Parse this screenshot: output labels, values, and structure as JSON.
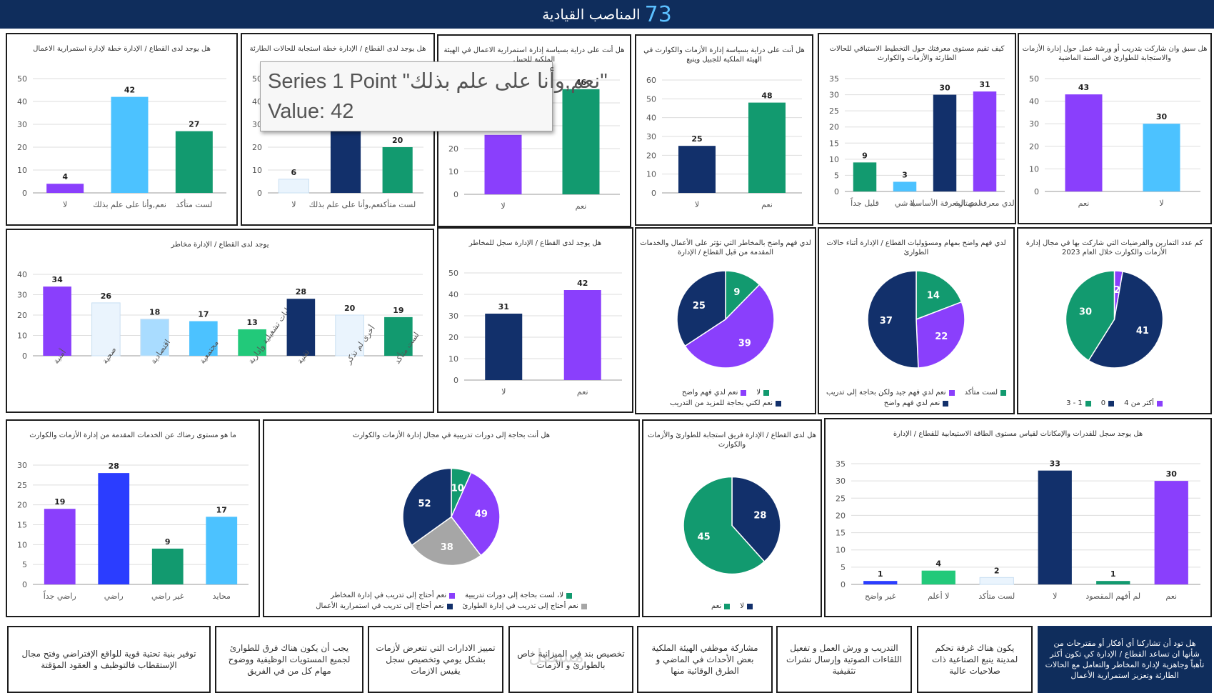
{
  "header": {
    "title": "المناصب القيادية",
    "number": "73"
  },
  "tooltip": {
    "line1": "Series 1 Point \"نعم,وأنا على علم بذلك\"",
    "line2": "Value: 42"
  },
  "watermark": "مستقل",
  "chart_data": [
    {
      "id": "c1",
      "type": "bar",
      "title": "هل يوجد لدى القطاع / الإدارة خطة لإدارة استمرارية الاعمال",
      "categories": [
        "لا",
        "نعم,وأنا على علم بذلك",
        "لست متأكد"
      ],
      "values": [
        4,
        42,
        27
      ],
      "colors": [
        "#8a3ffc",
        "#4cc2ff",
        "#129a6f"
      ],
      "ylim": [
        0,
        50
      ],
      "ticks": [
        0,
        10,
        20,
        30,
        40,
        50
      ]
    },
    {
      "id": "c2",
      "type": "bar",
      "title": "هل يوجد لدى القطاع / الإدارة خطة استجابة للحالات الطارئة",
      "categories": [
        "لا",
        "نعم,وأنا على علم بذلك",
        "لست متأكد"
      ],
      "values": [
        6,
        42,
        20
      ],
      "colors": [
        "#eaf4fd",
        "#12306b",
        "#129a6f"
      ],
      "ylim": [
        0,
        50
      ],
      "ticks": [
        0,
        10,
        20,
        30,
        40,
        50
      ]
    },
    {
      "id": "c3",
      "type": "bar",
      "title": "هل أنت على دراية بسياسة إدارة استمرارية الاعمال في الهيئة الملكية للجبيل",
      "categories": [
        "لا",
        "نعم"
      ],
      "values": [
        26,
        46
      ],
      "colors": [
        "#8a3ffc",
        "#129a6f"
      ],
      "ylim": [
        0,
        50
      ],
      "ticks": [
        0,
        10,
        20,
        30,
        40,
        50
      ]
    },
    {
      "id": "c4",
      "type": "bar",
      "title": "هل أنت على دراية بسياسة إدارة الأزمات والكوارث في الهيئة الملكية للجبيل وينبع",
      "categories": [
        "لا",
        "نعم"
      ],
      "values": [
        25,
        48
      ],
      "colors": [
        "#12306b",
        "#129a6f"
      ],
      "ylim": [
        0,
        60
      ],
      "ticks": [
        0,
        10,
        20,
        30,
        40,
        50,
        60
      ]
    },
    {
      "id": "c5",
      "type": "bar",
      "title": "كيف تقيم مستوى معرفتك حول التخطيط الاستباقي للحالات الطارئة والأزمات والكوارث",
      "categories": [
        "قليل جداً",
        "لا شي",
        "لدي المعرفة الأساسية",
        "لدي معرفة ممتازة"
      ],
      "values": [
        9,
        3,
        30,
        31
      ],
      "colors": [
        "#129a6f",
        "#4cc2ff",
        "#12306b",
        "#8a3ffc"
      ],
      "ylim": [
        0,
        35
      ],
      "ticks": [
        0,
        5,
        10,
        15,
        20,
        25,
        30,
        35
      ]
    },
    {
      "id": "c6",
      "type": "bar",
      "title": "هل سبق وان شاركت بتدريب أو ورشة عمل حول إدارة الأزمات والاستجابة للطوارئ في السنة الماضية",
      "categories": [
        "نعم",
        "لا"
      ],
      "values": [
        43,
        30
      ],
      "colors": [
        "#8a3ffc",
        "#4cc2ff"
      ],
      "ylim": [
        0,
        50
      ],
      "ticks": [
        0,
        10,
        20,
        30,
        40,
        50
      ]
    },
    {
      "id": "c7",
      "type": "bar",
      "title": "يوجد لدى القطاع / الإدارة مخاطر",
      "categories": [
        "أمنية",
        "صحية",
        "اقتصادية",
        "مجتمعية",
        "عمليات تشغيلية وإدارية",
        "تقنية",
        "أخرى لم تذكر",
        "لست متأكد"
      ],
      "values": [
        34,
        26,
        18,
        17,
        13,
        28,
        20,
        19
      ],
      "colors": [
        "#8a3ffc",
        "#eaf4fd",
        "#a9dcff",
        "#4cc2ff",
        "#22c97a",
        "#12306b",
        "#eaf4fd",
        "#129a6f"
      ],
      "ylim": [
        0,
        40
      ],
      "ticks": [
        0,
        10,
        20,
        30,
        40
      ]
    },
    {
      "id": "c8",
      "type": "bar",
      "title": "هل يوجد لدى القطاع / الإدارة سجل للمخاطر",
      "categories": [
        "لا",
        "نعم"
      ],
      "values": [
        31,
        42
      ],
      "colors": [
        "#12306b",
        "#8a3ffc"
      ],
      "ylim": [
        0,
        50
      ],
      "ticks": [
        0,
        10,
        20,
        30,
        40,
        50
      ]
    },
    {
      "id": "c9",
      "type": "pie",
      "title": "لدي فهم واضح بالمخاطر التي تؤثر على الأعمال والخدمات المقدمة من قبل القطاع / الإدارة",
      "labels": [
        "لا",
        "نعم لدي فهم واضح",
        "نعم لكني بحاجة للمزيد من التدريب"
      ],
      "values": [
        9,
        39,
        25
      ],
      "colors": [
        "#129a6f",
        "#8a3ffc",
        "#12306b"
      ]
    },
    {
      "id": "c10",
      "type": "pie",
      "title": "لدي فهم واضح بمهام ومسؤوليات القطاع / الإدارة أثناء حالات الطوارئ",
      "labels": [
        "لست متأكد",
        "نعم لدي فهم جيد ولكن بحاجة إلى تدريب",
        "نعم لدي فهم واضح"
      ],
      "values": [
        14,
        22,
        37
      ],
      "colors": [
        "#129a6f",
        "#8a3ffc",
        "#12306b"
      ]
    },
    {
      "id": "c11",
      "type": "pie",
      "title": "كم عدد التمارين والفرضيات التي شاركت بها في مجال إدارة الأزمات والكوارث خلال العام 2023",
      "labels": [
        "أكثر من 4",
        "0",
        "1 - 3"
      ],
      "values": [
        2,
        41,
        30
      ],
      "colors": [
        "#8a3ffc",
        "#12306b",
        "#129a6f"
      ]
    },
    {
      "id": "c12",
      "type": "bar",
      "title": "ما هو مستوى رضاك عن الخدمات المقدمة من إدارة الأزمات والكوارث",
      "categories": [
        "راضي جداً",
        "راضي",
        "غير راضي",
        "محايد"
      ],
      "values": [
        19,
        28,
        9,
        17
      ],
      "colors": [
        "#8a3ffc",
        "#2b3dff",
        "#129a6f",
        "#4cc2ff"
      ],
      "ylim": [
        0,
        30
      ],
      "ticks": [
        0,
        5,
        10,
        15,
        20,
        25,
        30
      ]
    },
    {
      "id": "c13",
      "type": "pie",
      "title": "هل أنت بحاجة إلى دورات تدريبية في مجال إدارة الأزمات والكوارث",
      "labels": [
        "لا، لست بحاجة إلى دورات تدريبية",
        "نعم أحتاج إلى تدريب في إدارة المخاطر",
        "نعم أحتاج إلى تدريب في إدارة الطوارئ",
        "نعم أحتاج إلى تدريب في استمرارية الأعمال"
      ],
      "values": [
        10,
        49,
        38,
        52
      ],
      "colors": [
        "#129a6f",
        "#8a3ffc",
        "#a6a6a6",
        "#12306b"
      ]
    },
    {
      "id": "c14",
      "type": "pie",
      "title": "هل لدى القطاع / الإدارة فريق استجابة للطوارئ والأزمات والكوارث",
      "labels": [
        "لا",
        "نعم"
      ],
      "values": [
        28,
        45
      ],
      "colors": [
        "#12306b",
        "#129a6f"
      ]
    },
    {
      "id": "c15",
      "type": "bar",
      "title": "هل يوجد سجل للقدرات والإمكانات لقياس مستوى الطاقة الاستيعابية للقطاع / الإدارة",
      "categories": [
        "غير واضح",
        "لا أعلم",
        "لست متأكد",
        "لا",
        "لم أفهم المقصود",
        "نعم"
      ],
      "values": [
        1,
        4,
        2,
        33,
        1,
        30
      ],
      "colors": [
        "#2b3dff",
        "#22c97a",
        "#eaf4fd",
        "#12306b",
        "#129a6f",
        "#8a3ffc"
      ],
      "ylim": [
        0,
        35
      ],
      "ticks": [
        0,
        5,
        10,
        15,
        20,
        25,
        30,
        35
      ]
    }
  ],
  "suggestions": {
    "question": "هل تود أن تشاركنا أي أفكار أو مقترحات من شأنها ان تساعد القطاع / الإدارة كي تكون أكثر تأهباً وجاهزية لإدارة المخاطر والتعامل مع الحالات الطارئة وتعزيز استمرارية الأعمال",
    "items": [
      "يكون هناك غرفة تحكم لمدينة ينبع الصناعية ذات صلاحيات عالية",
      "التدريب و ورش العمل و تفعيل اللقاءات الصوتية وإرسال نشرات تثقيفية",
      "مشاركة موظفي الهيئة الملكية بعض الأحداث في الماضي و الطرق الوقائية منها",
      "تخصيص بند في الميزانية خاص بالطوارئ و الأزمات",
      "تمييز الادارات التي تتعرض لأزمات بشكل يومي وتخصيص سجل يقيس الازمات",
      "يجب أن يكون هناك فرق للطوارئ لجميع المستويات الوظيفية ووضوح مهام كل من في الفريق",
      "توفير بنية تحتية قوية للواقع الإفتراضي وفتح مجال الإستقطاب فالتوظيف و العقود المؤقتة"
    ]
  }
}
